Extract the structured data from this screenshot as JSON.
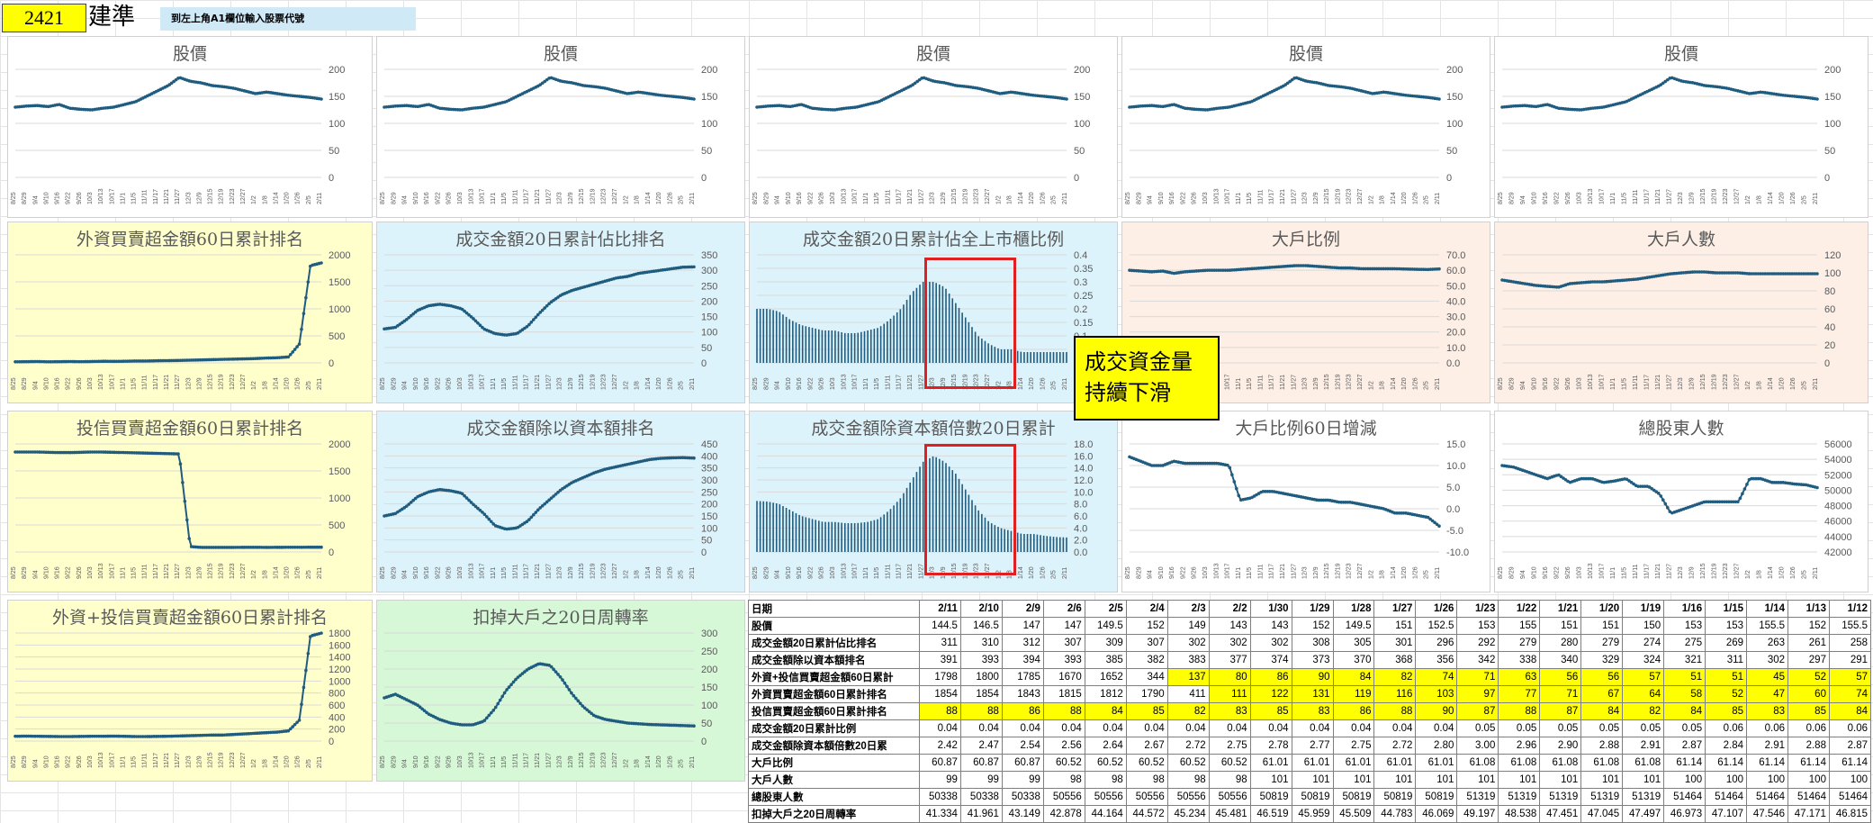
{
  "header": {
    "code": "2421",
    "name": "建準",
    "hint": "到左上角A1欄位輸入股票代號"
  },
  "callout": "成交資金量\n持續下滑",
  "colors": {
    "line": "#1f5c7f",
    "bar": "#1f5c7f",
    "highlight": "#ffff00",
    "redbox": "#e02020",
    "yellow_bg": "#ffffcc",
    "blue_bg": "#ddf3fb",
    "peach_bg": "#fdefe5",
    "green_bg": "#d6f8d6"
  },
  "x_labels": [
    "8/25",
    "8/29",
    "9/4",
    "9/10",
    "9/16",
    "9/22",
    "9/26",
    "10/3",
    "10/13",
    "10/17",
    "11/1",
    "11/5",
    "11/11",
    "11/17",
    "11/21",
    "11/27",
    "12/3",
    "12/9",
    "12/15",
    "12/19",
    "12/23",
    "12/27",
    "1/2",
    "1/8",
    "1/14",
    "1/20",
    "1/26",
    "2/5",
    "2/11"
  ],
  "chart_data": [
    {
      "id": "price1",
      "type": "line",
      "title": "股價",
      "ylim": [
        0,
        200
      ],
      "yticks": [
        0,
        50,
        100,
        150,
        200
      ],
      "values": [
        130,
        132,
        133,
        131,
        135,
        128,
        126,
        125,
        128,
        130,
        135,
        140,
        150,
        160,
        170,
        185,
        178,
        175,
        170,
        168,
        165,
        160,
        155,
        158,
        155,
        152,
        150,
        148,
        145
      ]
    },
    {
      "id": "price2",
      "type": "line",
      "title": "股價",
      "ylim": [
        0,
        200
      ],
      "yticks": [
        0,
        50,
        100,
        150,
        200
      ],
      "values": [
        130,
        132,
        133,
        131,
        135,
        128,
        126,
        125,
        128,
        130,
        135,
        140,
        150,
        160,
        170,
        185,
        178,
        175,
        170,
        168,
        165,
        160,
        155,
        158,
        155,
        152,
        150,
        148,
        145
      ]
    },
    {
      "id": "price3",
      "type": "line",
      "title": "股價",
      "ylim": [
        0,
        200
      ],
      "yticks": [
        0,
        50,
        100,
        150,
        200
      ],
      "values": [
        130,
        132,
        133,
        131,
        135,
        128,
        126,
        125,
        128,
        130,
        135,
        140,
        150,
        160,
        170,
        185,
        178,
        175,
        170,
        168,
        165,
        160,
        155,
        158,
        155,
        152,
        150,
        148,
        145
      ]
    },
    {
      "id": "price4",
      "type": "line",
      "title": "股價",
      "ylim": [
        0,
        200
      ],
      "yticks": [
        0,
        50,
        100,
        150,
        200
      ],
      "values": [
        130,
        132,
        133,
        131,
        135,
        128,
        126,
        125,
        128,
        130,
        135,
        140,
        150,
        160,
        170,
        185,
        178,
        175,
        170,
        168,
        165,
        160,
        155,
        158,
        155,
        152,
        150,
        148,
        145
      ]
    },
    {
      "id": "price5",
      "type": "line",
      "title": "股價",
      "ylim": [
        0,
        200
      ],
      "yticks": [
        0,
        50,
        100,
        150,
        200
      ],
      "values": [
        130,
        132,
        133,
        131,
        135,
        128,
        126,
        125,
        128,
        130,
        135,
        140,
        150,
        160,
        170,
        185,
        178,
        175,
        170,
        168,
        165,
        160,
        155,
        158,
        155,
        152,
        150,
        148,
        145
      ]
    },
    {
      "id": "foreign60",
      "type": "line",
      "title": "外資買賣超金額60日累計排名",
      "ylim": [
        0,
        2000
      ],
      "yticks": [
        0,
        500,
        1000,
        1500,
        2000
      ],
      "values": [
        20,
        22,
        25,
        20,
        22,
        25,
        22,
        25,
        30,
        28,
        30,
        35,
        35,
        40,
        42,
        45,
        50,
        55,
        60,
        65,
        70,
        75,
        80,
        90,
        95,
        110,
        350,
        1800,
        1850
      ]
    },
    {
      "id": "turnover20rank",
      "type": "line",
      "title": "成交金額20日累計佔比排名",
      "ylim": [
        0,
        350
      ],
      "yticks": [
        0,
        50,
        100,
        150,
        200,
        250,
        300,
        350
      ],
      "values": [
        110,
        115,
        140,
        170,
        185,
        190,
        185,
        175,
        145,
        110,
        95,
        90,
        95,
        120,
        160,
        195,
        220,
        235,
        245,
        255,
        265,
        275,
        280,
        290,
        295,
        300,
        305,
        310,
        311
      ]
    },
    {
      "id": "turnover20ratio",
      "type": "bar",
      "title": "成交金額20日累計佔全上市櫃比例",
      "ylim": [
        0,
        0.4
      ],
      "yticks": [
        0,
        0.05,
        0.1,
        0.15,
        0.2,
        0.25,
        0.3,
        0.35,
        0.4
      ],
      "values": [
        0.2,
        0.2,
        0.19,
        0.16,
        0.14,
        0.13,
        0.12,
        0.12,
        0.11,
        0.11,
        0.12,
        0.13,
        0.16,
        0.2,
        0.26,
        0.3,
        0.3,
        0.28,
        0.22,
        0.16,
        0.1,
        0.07,
        0.05,
        0.05,
        0.04,
        0.04,
        0.04,
        0.04,
        0.04
      ]
    },
    {
      "id": "bigholder_ratio",
      "type": "line",
      "title": "大戶比例",
      "ylim": [
        0,
        70
      ],
      "yticks": [
        0,
        10,
        20,
        30,
        40,
        50,
        60,
        70
      ],
      "values": [
        60,
        59.5,
        59,
        59.5,
        58,
        59,
        59.5,
        60,
        60,
        60,
        60.5,
        61,
        61.5,
        62,
        62.5,
        63,
        63,
        62.5,
        62,
        61.5,
        61.5,
        61,
        61,
        61,
        61,
        60.8,
        60.6,
        60.5,
        60.87
      ]
    },
    {
      "id": "bigholder_count",
      "type": "line",
      "title": "大戶人數",
      "ylim": [
        0,
        120
      ],
      "yticks": [
        0,
        20,
        40,
        60,
        80,
        100,
        120
      ],
      "values": [
        92,
        90,
        88,
        86,
        85,
        84,
        88,
        89,
        90,
        90,
        91,
        92,
        93,
        95,
        97,
        99,
        100,
        101,
        101,
        100,
        100,
        100,
        99,
        99,
        99,
        99,
        99,
        99,
        99
      ]
    },
    {
      "id": "trust60",
      "type": "line",
      "title": "投信買賣超金額60日累計排名",
      "ylim": [
        0,
        2000
      ],
      "yticks": [
        0,
        500,
        1000,
        1500,
        2000
      ],
      "values": [
        1850,
        1850,
        1850,
        1845,
        1840,
        1840,
        1845,
        1850,
        1850,
        1845,
        1840,
        1835,
        1830,
        1825,
        1820,
        1815,
        100,
        85,
        85,
        85,
        85,
        86,
        86,
        85,
        86,
        87,
        87,
        88,
        88
      ]
    },
    {
      "id": "turnover_cap_rank",
      "type": "line",
      "title": "成交金額除以資本額排名",
      "ylim": [
        0,
        450
      ],
      "yticks": [
        0,
        50,
        100,
        150,
        200,
        250,
        300,
        350,
        400,
        450
      ],
      "values": [
        150,
        160,
        190,
        230,
        250,
        260,
        255,
        245,
        200,
        160,
        110,
        95,
        100,
        130,
        180,
        220,
        260,
        290,
        310,
        330,
        345,
        355,
        365,
        375,
        385,
        390,
        392,
        393,
        391
      ]
    },
    {
      "id": "turnover_cap20",
      "type": "bar",
      "title": "成交金額除資本額倍數20日累計",
      "ylim": [
        0,
        18
      ],
      "yticks": [
        0,
        2,
        4,
        6,
        8,
        10,
        12,
        14,
        16,
        18
      ],
      "values": [
        8.5,
        8.4,
        8,
        7,
        6,
        5.5,
        5,
        5,
        4.8,
        4.8,
        5,
        5.5,
        7,
        9,
        12,
        15,
        16,
        15,
        13,
        10,
        7,
        5,
        4,
        3.5,
        3,
        3,
        2.7,
        2.5,
        2.42
      ]
    },
    {
      "id": "bigholder60",
      "type": "line",
      "title": "大戶比例60日增減",
      "ylim": [
        -10,
        15
      ],
      "yticks": [
        -10,
        -5,
        0,
        5,
        10,
        15
      ],
      "values": [
        12,
        11,
        10,
        10,
        11,
        10.5,
        10.5,
        10.5,
        10.5,
        10,
        2,
        2.5,
        4,
        4,
        3.5,
        3,
        2.5,
        2,
        2,
        1.5,
        1.5,
        1,
        0.5,
        0,
        -1,
        -1,
        -1.5,
        -2,
        -4
      ]
    },
    {
      "id": "shareholders",
      "type": "line",
      "title": "總股東人數",
      "ylim": [
        42000,
        56000
      ],
      "yticks": [
        42000,
        44000,
        46000,
        48000,
        50000,
        52000,
        54000,
        56000
      ],
      "values": [
        53200,
        53000,
        52500,
        52000,
        51500,
        52000,
        51000,
        51500,
        51500,
        51000,
        51200,
        51500,
        50500,
        50500,
        49500,
        47000,
        47500,
        48000,
        48500,
        48500,
        48500,
        48500,
        51500,
        51500,
        51000,
        51000,
        50800,
        50700,
        50338
      ]
    },
    {
      "id": "foreign_trust60",
      "type": "line",
      "title": "外資+投信買賣超金額60日累計排名",
      "ylim": [
        0,
        1800
      ],
      "yticks": [
        0,
        200,
        400,
        600,
        800,
        1000,
        1200,
        1400,
        1600,
        1800
      ],
      "values": [
        80,
        82,
        80,
        78,
        75,
        75,
        78,
        80,
        80,
        82,
        80,
        75,
        75,
        78,
        80,
        85,
        90,
        95,
        100,
        100,
        110,
        120,
        130,
        140,
        150,
        170,
        350,
        1750,
        1798
      ]
    },
    {
      "id": "turnover_ex_big",
      "type": "line",
      "title": "扣掉大戶之20日周轉率",
      "ylim": [
        0,
        300
      ],
      "yticks": [
        0,
        50,
        100,
        150,
        200,
        250,
        300
      ],
      "values": [
        120,
        130,
        115,
        100,
        75,
        60,
        50,
        45,
        45,
        55,
        90,
        140,
        175,
        200,
        215,
        210,
        175,
        130,
        95,
        70,
        60,
        55,
        50,
        48,
        46,
        45,
        44,
        43,
        42
      ]
    }
  ],
  "table": {
    "dates": [
      "日期",
      "2/11",
      "2/10",
      "2/9",
      "2/6",
      "2/5",
      "2/4",
      "2/3",
      "2/2",
      "1/30",
      "1/29",
      "1/28",
      "1/27",
      "1/26",
      "1/23",
      "1/22",
      "1/21",
      "1/20",
      "1/19",
      "1/16",
      "1/15",
      "1/14",
      "1/13",
      "1/12"
    ],
    "rows": [
      {
        "label": "股價",
        "values": [
          "144.5",
          "146.5",
          "147",
          "147",
          "149.5",
          "152",
          "149",
          "143",
          "143",
          "152",
          "149.5",
          "151",
          "152.5",
          "153",
          "155",
          "151",
          "151",
          "150",
          "153",
          "153",
          "155.5",
          "152",
          "155.5"
        ],
        "hl": 0
      },
      {
        "label": "成交金額20日累計佔比排名",
        "values": [
          "311",
          "310",
          "312",
          "307",
          "309",
          "307",
          "302",
          "302",
          "302",
          "308",
          "305",
          "301",
          "296",
          "292",
          "279",
          "280",
          "279",
          "274",
          "275",
          "269",
          "263",
          "261",
          "258"
        ],
        "hl": 0
      },
      {
        "label": "成交金額除以資本額排名",
        "values": [
          "391",
          "393",
          "394",
          "393",
          "385",
          "382",
          "383",
          "377",
          "374",
          "373",
          "370",
          "368",
          "356",
          "342",
          "338",
          "340",
          "329",
          "324",
          "321",
          "311",
          "302",
          "297",
          "291"
        ],
        "hl": 0
      },
      {
        "label": "外資+投信買賣超金額60日累計",
        "values": [
          "1798",
          "1800",
          "1785",
          "1670",
          "1652",
          "344",
          "137",
          "80",
          "86",
          "90",
          "84",
          "82",
          "74",
          "71",
          "63",
          "56",
          "56",
          "57",
          "51",
          "51",
          "45",
          "52",
          "57"
        ],
        "hl": 6
      },
      {
        "label": "外資買賣超金額60日累計排名",
        "values": [
          "1854",
          "1854",
          "1843",
          "1815",
          "1812",
          "1790",
          "411",
          "111",
          "122",
          "131",
          "119",
          "116",
          "103",
          "97",
          "77",
          "71",
          "67",
          "64",
          "58",
          "52",
          "47",
          "60",
          "74"
        ],
        "hl": 7
      },
      {
        "label": "投信買賣超金額60日累計排名",
        "values": [
          "88",
          "88",
          "86",
          "88",
          "84",
          "85",
          "82",
          "83",
          "85",
          "83",
          "86",
          "88",
          "90",
          "87",
          "88",
          "87",
          "84",
          "82",
          "84",
          "85",
          "83",
          "85",
          "84"
        ],
        "hl": 1
      },
      {
        "label": "成交金額20日累計比例",
        "values": [
          "0.04",
          "0.04",
          "0.04",
          "0.04",
          "0.04",
          "0.04",
          "0.04",
          "0.04",
          "0.04",
          "0.04",
          "0.04",
          "0.04",
          "0.04",
          "0.05",
          "0.05",
          "0.05",
          "0.05",
          "0.05",
          "0.05",
          "0.06",
          "0.06",
          "0.06",
          "0.06"
        ],
        "hl": 0
      },
      {
        "label": "成交金額除資本額倍數20日累",
        "values": [
          "2.42",
          "2.47",
          "2.54",
          "2.56",
          "2.64",
          "2.67",
          "2.72",
          "2.75",
          "2.78",
          "2.77",
          "2.75",
          "2.72",
          "2.80",
          "3.00",
          "2.96",
          "2.90",
          "2.88",
          "2.91",
          "2.87",
          "2.84",
          "2.91",
          "2.88",
          "2.87"
        ],
        "hl": 0
      },
      {
        "label": "大戶比例",
        "values": [
          "60.87",
          "60.87",
          "60.87",
          "60.52",
          "60.52",
          "60.52",
          "60.52",
          "60.52",
          "61.01",
          "61.01",
          "61.01",
          "61.01",
          "61.01",
          "61.08",
          "61.08",
          "61.08",
          "61.08",
          "61.08",
          "61.14",
          "61.14",
          "61.14",
          "61.14",
          "61.14"
        ],
        "hl": 0
      },
      {
        "label": "大戶人數",
        "values": [
          "99",
          "99",
          "99",
          "98",
          "98",
          "98",
          "98",
          "98",
          "101",
          "101",
          "101",
          "101",
          "101",
          "101",
          "101",
          "101",
          "101",
          "101",
          "100",
          "100",
          "100",
          "100",
          "100"
        ],
        "hl": 0
      },
      {
        "label": "總股東人數",
        "values": [
          "50338",
          "50338",
          "50338",
          "50556",
          "50556",
          "50556",
          "50556",
          "50556",
          "50819",
          "50819",
          "50819",
          "50819",
          "50819",
          "51319",
          "51319",
          "51319",
          "51319",
          "51319",
          "51464",
          "51464",
          "51464",
          "51464",
          "51464"
        ],
        "hl": 0
      },
      {
        "label": "扣掉大戶之20日周轉率",
        "values": [
          "41.334",
          "41.961",
          "43.149",
          "42.878",
          "44.164",
          "44.572",
          "45.234",
          "45.481",
          "46.519",
          "45.959",
          "45.509",
          "44.783",
          "46.069",
          "49.197",
          "48.538",
          "47.451",
          "47.045",
          "47.497",
          "46.973",
          "47.107",
          "47.546",
          "47.171",
          "46.815"
        ],
        "hl": 0
      }
    ]
  }
}
